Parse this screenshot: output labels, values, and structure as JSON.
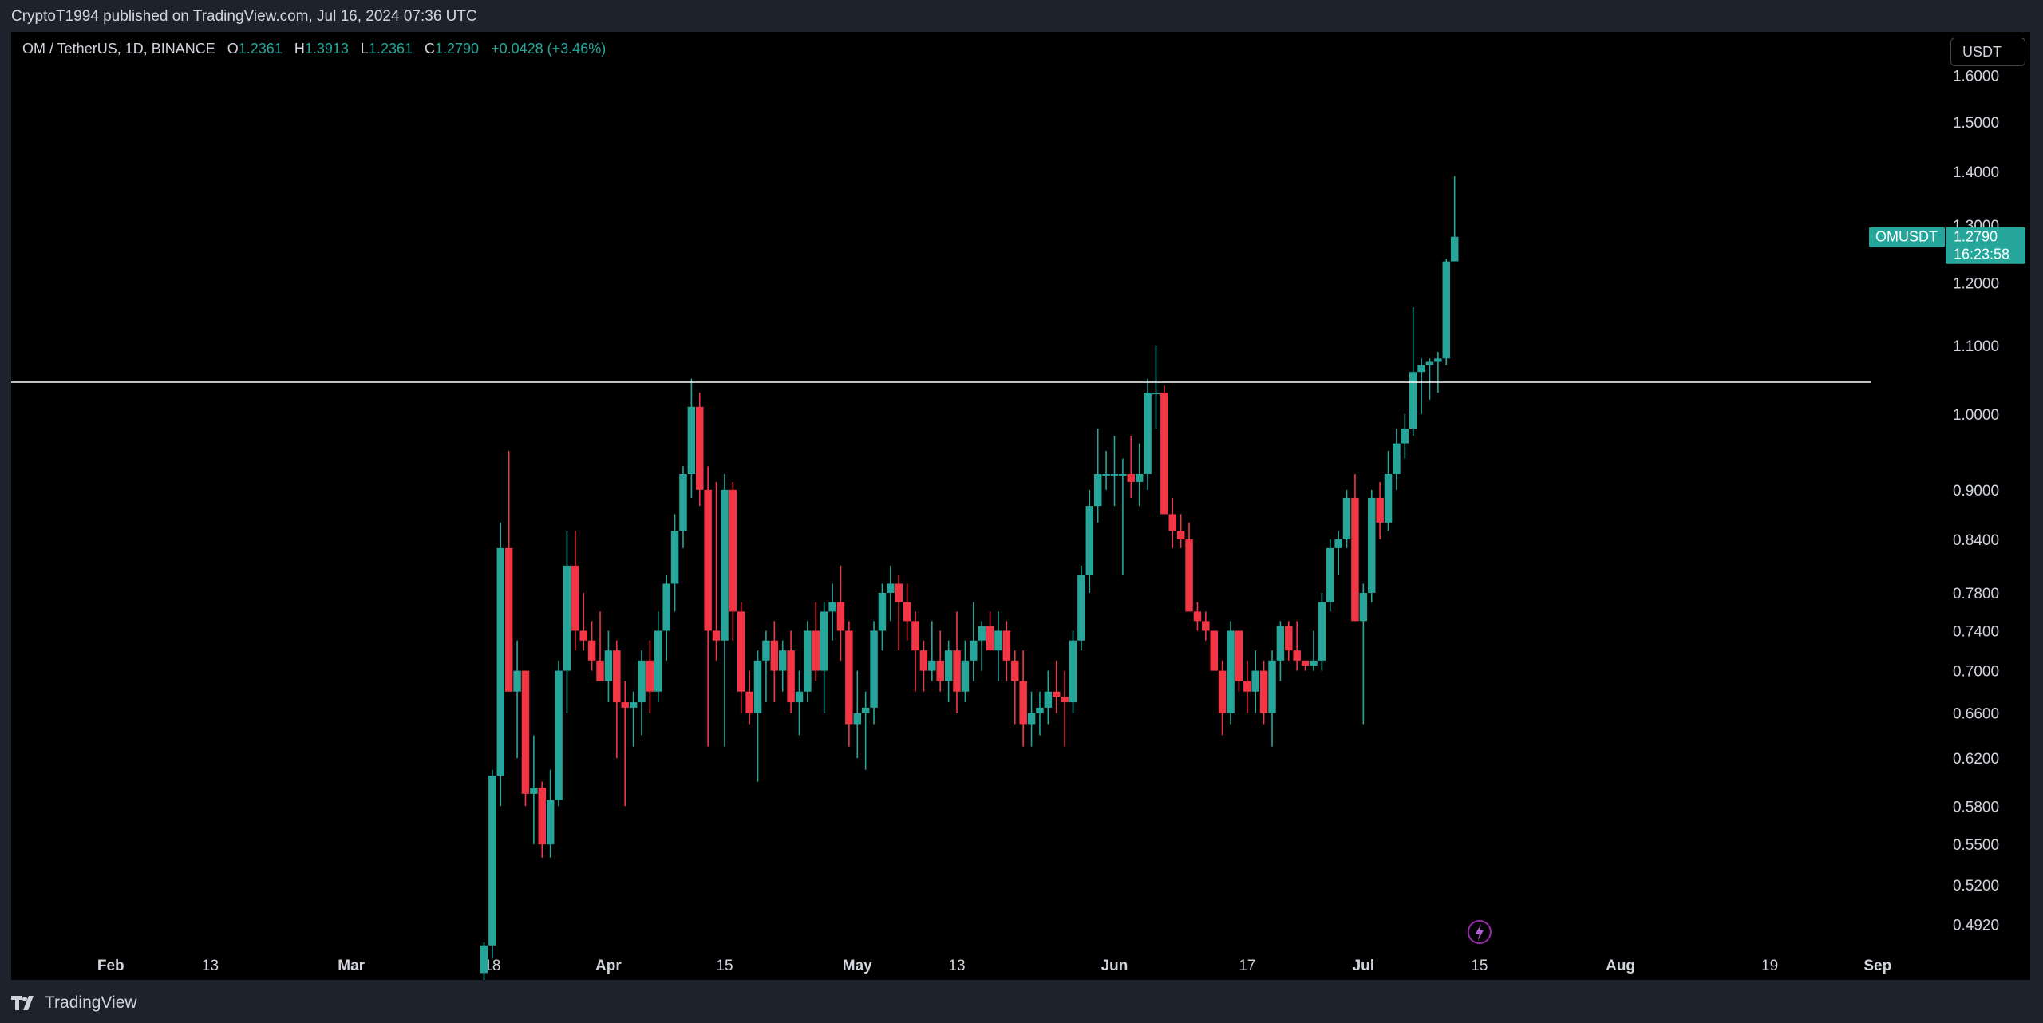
{
  "header": {
    "credit": "CryptoT1994 published on TradingView.com, Jul 16, 2024 07:36 UTC"
  },
  "legend": {
    "symbol": "OM / TetherUS, 1D, BINANCE",
    "open_label": "O",
    "open": "1.2361",
    "high_label": "H",
    "high": "1.3913",
    "low_label": "L",
    "low": "1.2361",
    "close_label": "C",
    "close": "1.2790",
    "change": "+0.0428 (+3.46%)"
  },
  "toolbar": {
    "currency": "USDT"
  },
  "price_tag": {
    "symbol": "OMUSDT",
    "price": "1.2790",
    "countdown": "16:23:58"
  },
  "footer": {
    "brand": "TradingView"
  },
  "colors": {
    "up": "#26a69a",
    "down": "#f23645",
    "bg": "#000000",
    "frame": "#1e222d",
    "line": "#ffffff"
  },
  "chart_data": {
    "type": "candlestick",
    "symbol": "OM / TetherUS",
    "interval": "1D",
    "exchange": "BINANCE",
    "y_scale": "log",
    "ylim": [
      0.47,
      1.7
    ],
    "y_ticks": [
      "1.6000",
      "1.5000",
      "1.4000",
      "1.3000",
      "1.2000",
      "1.1000",
      "1.0000",
      "0.9000",
      "0.8400",
      "0.7800",
      "0.7400",
      "0.7000",
      "0.6600",
      "0.6200",
      "0.5800",
      "0.5500",
      "0.5200",
      "0.4920"
    ],
    "x_range": [
      "2024-01-20",
      "2024-09-04"
    ],
    "x_ticks": [
      {
        "date": "2024-02-01",
        "label": "Feb",
        "month": true
      },
      {
        "date": "2024-02-13",
        "label": "13",
        "month": false
      },
      {
        "date": "2024-03-01",
        "label": "Mar",
        "month": true
      },
      {
        "date": "2024-03-18",
        "label": "18",
        "month": false
      },
      {
        "date": "2024-04-01",
        "label": "Apr",
        "month": true
      },
      {
        "date": "2024-04-15",
        "label": "15",
        "month": false
      },
      {
        "date": "2024-05-01",
        "label": "May",
        "month": true
      },
      {
        "date": "2024-05-13",
        "label": "13",
        "month": false
      },
      {
        "date": "2024-06-01",
        "label": "Jun",
        "month": true
      },
      {
        "date": "2024-06-17",
        "label": "17",
        "month": false
      },
      {
        "date": "2024-07-01",
        "label": "Jul",
        "month": true
      },
      {
        "date": "2024-07-15",
        "label": "15",
        "month": false
      },
      {
        "date": "2024-08-01",
        "label": "Aug",
        "month": true
      },
      {
        "date": "2024-08-19",
        "label": "19",
        "month": false
      },
      {
        "date": "2024-09-01",
        "label": "Sep",
        "month": true
      }
    ],
    "horizontal_line": 1.045,
    "last_price": 1.279,
    "start_date": "2024-03-17",
    "candles": [
      [
        0.46,
        0.48,
        0.45,
        0.478
      ],
      [
        0.478,
        0.61,
        0.47,
        0.605
      ],
      [
        0.605,
        0.86,
        0.58,
        0.83
      ],
      [
        0.83,
        0.95,
        0.68,
        0.68
      ],
      [
        0.68,
        0.73,
        0.62,
        0.7
      ],
      [
        0.7,
        0.7,
        0.58,
        0.59
      ],
      [
        0.59,
        0.64,
        0.55,
        0.595
      ],
      [
        0.595,
        0.6,
        0.54,
        0.55
      ],
      [
        0.55,
        0.61,
        0.54,
        0.585
      ],
      [
        0.585,
        0.71,
        0.58,
        0.7
      ],
      [
        0.7,
        0.85,
        0.66,
        0.81
      ],
      [
        0.81,
        0.85,
        0.72,
        0.74
      ],
      [
        0.74,
        0.78,
        0.72,
        0.73
      ],
      [
        0.73,
        0.75,
        0.7,
        0.71
      ],
      [
        0.71,
        0.76,
        0.69,
        0.69
      ],
      [
        0.69,
        0.74,
        0.67,
        0.72
      ],
      [
        0.72,
        0.73,
        0.62,
        0.67
      ],
      [
        0.67,
        0.69,
        0.58,
        0.665
      ],
      [
        0.665,
        0.68,
        0.63,
        0.67
      ],
      [
        0.67,
        0.72,
        0.64,
        0.71
      ],
      [
        0.71,
        0.73,
        0.66,
        0.68
      ],
      [
        0.68,
        0.76,
        0.67,
        0.74
      ],
      [
        0.74,
        0.8,
        0.71,
        0.79
      ],
      [
        0.79,
        0.87,
        0.76,
        0.85
      ],
      [
        0.85,
        0.93,
        0.83,
        0.92
      ],
      [
        0.92,
        1.05,
        0.89,
        1.01
      ],
      [
        1.01,
        1.03,
        0.88,
        0.9
      ],
      [
        0.9,
        0.93,
        0.63,
        0.74
      ],
      [
        0.74,
        0.91,
        0.71,
        0.73
      ],
      [
        0.73,
        0.92,
        0.63,
        0.9
      ],
      [
        0.9,
        0.91,
        0.73,
        0.76
      ],
      [
        0.76,
        0.77,
        0.66,
        0.68
      ],
      [
        0.68,
        0.7,
        0.65,
        0.66
      ],
      [
        0.66,
        0.72,
        0.6,
        0.71
      ],
      [
        0.71,
        0.74,
        0.67,
        0.73
      ],
      [
        0.73,
        0.75,
        0.67,
        0.7
      ],
      [
        0.7,
        0.73,
        0.68,
        0.72
      ],
      [
        0.72,
        0.74,
        0.66,
        0.67
      ],
      [
        0.67,
        0.7,
        0.64,
        0.68
      ],
      [
        0.68,
        0.75,
        0.67,
        0.74
      ],
      [
        0.74,
        0.77,
        0.69,
        0.7
      ],
      [
        0.7,
        0.77,
        0.66,
        0.76
      ],
      [
        0.76,
        0.79,
        0.73,
        0.77
      ],
      [
        0.77,
        0.81,
        0.71,
        0.74
      ],
      [
        0.74,
        0.75,
        0.63,
        0.65
      ],
      [
        0.65,
        0.7,
        0.62,
        0.66
      ],
      [
        0.66,
        0.68,
        0.61,
        0.665
      ],
      [
        0.665,
        0.75,
        0.65,
        0.74
      ],
      [
        0.74,
        0.79,
        0.72,
        0.78
      ],
      [
        0.78,
        0.81,
        0.75,
        0.79
      ],
      [
        0.79,
        0.8,
        0.72,
        0.77
      ],
      [
        0.77,
        0.79,
        0.73,
        0.75
      ],
      [
        0.75,
        0.76,
        0.68,
        0.72
      ],
      [
        0.72,
        0.73,
        0.68,
        0.7
      ],
      [
        0.7,
        0.75,
        0.69,
        0.71
      ],
      [
        0.71,
        0.74,
        0.68,
        0.69
      ],
      [
        0.69,
        0.73,
        0.67,
        0.72
      ],
      [
        0.72,
        0.76,
        0.66,
        0.68
      ],
      [
        0.68,
        0.73,
        0.67,
        0.71
      ],
      [
        0.71,
        0.77,
        0.69,
        0.73
      ],
      [
        0.73,
        0.75,
        0.7,
        0.745
      ],
      [
        0.745,
        0.76,
        0.72,
        0.72
      ],
      [
        0.72,
        0.76,
        0.69,
        0.74
      ],
      [
        0.74,
        0.75,
        0.69,
        0.71
      ],
      [
        0.71,
        0.72,
        0.65,
        0.69
      ],
      [
        0.69,
        0.72,
        0.63,
        0.65
      ],
      [
        0.65,
        0.68,
        0.63,
        0.66
      ],
      [
        0.66,
        0.68,
        0.64,
        0.665
      ],
      [
        0.665,
        0.7,
        0.65,
        0.68
      ],
      [
        0.68,
        0.71,
        0.66,
        0.675
      ],
      [
        0.675,
        0.7,
        0.63,
        0.67
      ],
      [
        0.67,
        0.74,
        0.66,
        0.73
      ],
      [
        0.73,
        0.81,
        0.72,
        0.8
      ],
      [
        0.8,
        0.9,
        0.78,
        0.88
      ],
      [
        0.88,
        0.98,
        0.86,
        0.92
      ],
      [
        0.92,
        0.95,
        0.9,
        0.92
      ],
      [
        0.92,
        0.97,
        0.88,
        0.92
      ],
      [
        0.92,
        0.94,
        0.8,
        0.92
      ],
      [
        0.92,
        0.97,
        0.89,
        0.91
      ],
      [
        0.91,
        0.96,
        0.88,
        0.92
      ],
      [
        0.92,
        1.05,
        0.9,
        1.03
      ],
      [
        1.03,
        1.1,
        0.98,
        1.03
      ],
      [
        1.03,
        1.04,
        0.87,
        0.87
      ],
      [
        0.87,
        0.89,
        0.83,
        0.85
      ],
      [
        0.85,
        0.87,
        0.83,
        0.84
      ],
      [
        0.84,
        0.86,
        0.76,
        0.76
      ],
      [
        0.76,
        0.77,
        0.74,
        0.75
      ],
      [
        0.75,
        0.76,
        0.73,
        0.74
      ],
      [
        0.74,
        0.74,
        0.7,
        0.7
      ],
      [
        0.7,
        0.71,
        0.64,
        0.66
      ],
      [
        0.66,
        0.75,
        0.65,
        0.74
      ],
      [
        0.74,
        0.74,
        0.68,
        0.69
      ],
      [
        0.69,
        0.71,
        0.66,
        0.68
      ],
      [
        0.68,
        0.72,
        0.66,
        0.7
      ],
      [
        0.7,
        0.71,
        0.65,
        0.66
      ],
      [
        0.66,
        0.72,
        0.63,
        0.71
      ],
      [
        0.71,
        0.75,
        0.69,
        0.745
      ],
      [
        0.745,
        0.75,
        0.71,
        0.72
      ],
      [
        0.72,
        0.75,
        0.7,
        0.71
      ],
      [
        0.71,
        0.71,
        0.7,
        0.705
      ],
      [
        0.705,
        0.74,
        0.7,
        0.71
      ],
      [
        0.71,
        0.78,
        0.7,
        0.77
      ],
      [
        0.77,
        0.84,
        0.76,
        0.83
      ],
      [
        0.83,
        0.85,
        0.8,
        0.84
      ],
      [
        0.84,
        0.9,
        0.83,
        0.89
      ],
      [
        0.89,
        0.92,
        0.75,
        0.75
      ],
      [
        0.75,
        0.79,
        0.65,
        0.78
      ],
      [
        0.78,
        0.9,
        0.77,
        0.89
      ],
      [
        0.89,
        0.91,
        0.84,
        0.86
      ],
      [
        0.86,
        0.95,
        0.85,
        0.92
      ],
      [
        0.92,
        0.98,
        0.9,
        0.96
      ],
      [
        0.96,
        1.0,
        0.94,
        0.98
      ],
      [
        0.98,
        1.16,
        0.97,
        1.06
      ],
      [
        1.06,
        1.08,
        1.0,
        1.07
      ],
      [
        1.07,
        1.08,
        1.02,
        1.075
      ],
      [
        1.075,
        1.09,
        1.03,
        1.08
      ],
      [
        1.08,
        1.24,
        1.07,
        1.236
      ],
      [
        1.2361,
        1.3913,
        1.2361,
        1.279
      ]
    ]
  }
}
